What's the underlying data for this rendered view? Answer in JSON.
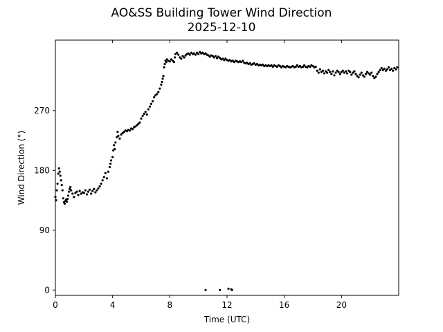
{
  "chart_data": {
    "type": "scatter",
    "title": "AO&SS Building Tower Wind Direction",
    "subtitle": "2025-12-10",
    "xlabel": "Time (UTC)",
    "ylabel": "Wind Direction (°)",
    "xlim": [
      0,
      24
    ],
    "ylim": [
      -8,
      376
    ],
    "xticks": [
      0,
      4,
      8,
      12,
      16,
      20
    ],
    "yticks": [
      0,
      90,
      180,
      270
    ],
    "grid": false,
    "legend": "none",
    "marker_color": "#000000",
    "series": [
      {
        "points": [
          [
            0.0,
            140
          ],
          [
            0.05,
            135
          ],
          [
            0.1,
            150
          ],
          [
            0.15,
            160
          ],
          [
            0.2,
            175
          ],
          [
            0.25,
            183
          ],
          [
            0.3,
            178
          ],
          [
            0.35,
            172
          ],
          [
            0.4,
            165
          ],
          [
            0.45,
            158
          ],
          [
            0.5,
            150
          ],
          [
            0.55,
            138
          ],
          [
            0.6,
            132
          ],
          [
            0.65,
            130
          ],
          [
            0.7,
            134
          ],
          [
            0.75,
            136
          ],
          [
            0.8,
            133
          ],
          [
            0.85,
            137
          ],
          [
            0.9,
            142
          ],
          [
            0.95,
            148
          ],
          [
            1.0,
            152
          ],
          [
            1.05,
            155
          ],
          [
            1.1,
            150
          ],
          [
            1.2,
            145
          ],
          [
            1.3,
            140
          ],
          [
            1.4,
            146
          ],
          [
            1.5,
            148
          ],
          [
            1.6,
            143
          ],
          [
            1.7,
            149
          ],
          [
            1.8,
            145
          ],
          [
            1.9,
            147
          ],
          [
            2.0,
            146
          ],
          [
            2.1,
            150
          ],
          [
            2.2,
            144
          ],
          [
            2.3,
            148
          ],
          [
            2.4,
            151
          ],
          [
            2.5,
            145
          ],
          [
            2.6,
            149
          ],
          [
            2.7,
            152
          ],
          [
            2.8,
            147
          ],
          [
            2.9,
            150
          ],
          [
            3.0,
            153
          ],
          [
            3.1,
            156
          ],
          [
            3.2,
            160
          ],
          [
            3.3,
            165
          ],
          [
            3.4,
            170
          ],
          [
            3.5,
            176
          ],
          [
            3.6,
            168
          ],
          [
            3.7,
            178
          ],
          [
            3.8,
            185
          ],
          [
            3.85,
            190
          ],
          [
            3.9,
            195
          ],
          [
            4.0,
            200
          ],
          [
            4.05,
            210
          ],
          [
            4.1,
            218
          ],
          [
            4.15,
            212
          ],
          [
            4.2,
            222
          ],
          [
            4.3,
            230
          ],
          [
            4.35,
            238
          ],
          [
            4.4,
            232
          ],
          [
            4.5,
            228
          ],
          [
            4.6,
            234
          ],
          [
            4.7,
            236
          ],
          [
            4.8,
            238
          ],
          [
            4.9,
            240
          ],
          [
            5.0,
            239
          ],
          [
            5.1,
            241
          ],
          [
            5.2,
            240
          ],
          [
            5.3,
            243
          ],
          [
            5.4,
            242
          ],
          [
            5.5,
            245
          ],
          [
            5.6,
            246
          ],
          [
            5.7,
            248
          ],
          [
            5.8,
            250
          ],
          [
            5.9,
            252
          ],
          [
            6.0,
            258
          ],
          [
            6.1,
            262
          ],
          [
            6.2,
            265
          ],
          [
            6.3,
            268
          ],
          [
            6.4,
            264
          ],
          [
            6.5,
            272
          ],
          [
            6.6,
            276
          ],
          [
            6.7,
            280
          ],
          [
            6.8,
            284
          ],
          [
            6.9,
            290
          ],
          [
            7.0,
            293
          ],
          [
            7.1,
            295
          ],
          [
            7.2,
            298
          ],
          [
            7.3,
            303
          ],
          [
            7.4,
            309
          ],
          [
            7.45,
            313
          ],
          [
            7.5,
            318
          ],
          [
            7.55,
            322
          ],
          [
            7.6,
            335
          ],
          [
            7.65,
            340
          ],
          [
            7.7,
            345
          ],
          [
            7.75,
            343
          ],
          [
            7.8,
            347
          ],
          [
            7.9,
            345
          ],
          [
            8.0,
            344
          ],
          [
            8.1,
            347
          ],
          [
            8.2,
            345
          ],
          [
            8.3,
            343
          ],
          [
            8.35,
            350
          ],
          [
            8.4,
            355
          ],
          [
            8.5,
            357
          ],
          [
            8.6,
            354
          ],
          [
            8.7,
            350
          ],
          [
            8.8,
            348
          ],
          [
            8.9,
            352
          ],
          [
            9.0,
            350
          ],
          [
            9.1,
            353
          ],
          [
            9.2,
            355
          ],
          [
            9.3,
            356
          ],
          [
            9.4,
            354
          ],
          [
            9.5,
            357
          ],
          [
            9.6,
            355
          ],
          [
            9.7,
            356
          ],
          [
            9.8,
            354
          ],
          [
            9.9,
            357
          ],
          [
            10.0,
            355
          ],
          [
            10.1,
            358
          ],
          [
            10.2,
            356
          ],
          [
            10.3,
            357
          ],
          [
            10.4,
            355
          ],
          [
            10.5,
            356
          ],
          [
            10.6,
            354
          ],
          [
            10.7,
            353
          ],
          [
            10.8,
            351
          ],
          [
            10.9,
            353
          ],
          [
            11.0,
            352
          ],
          [
            11.1,
            350
          ],
          [
            11.2,
            352
          ],
          [
            11.3,
            349
          ],
          [
            11.4,
            351
          ],
          [
            11.5,
            349
          ],
          [
            11.6,
            347
          ],
          [
            11.7,
            348
          ],
          [
            11.8,
            346
          ],
          [
            11.9,
            348
          ],
          [
            12.0,
            346
          ],
          [
            12.1,
            345
          ],
          [
            12.2,
            346
          ],
          [
            12.3,
            344
          ],
          [
            12.4,
            345
          ],
          [
            12.5,
            343
          ],
          [
            12.6,
            345
          ],
          [
            12.7,
            344
          ],
          [
            12.8,
            343
          ],
          [
            12.9,
            344
          ],
          [
            13.0,
            343
          ],
          [
            13.1,
            345
          ],
          [
            13.2,
            342
          ],
          [
            13.3,
            341
          ],
          [
            13.4,
            342
          ],
          [
            13.5,
            340
          ],
          [
            13.6,
            341
          ],
          [
            13.7,
            339
          ],
          [
            13.8,
            340
          ],
          [
            13.9,
            341
          ],
          [
            14.0,
            339
          ],
          [
            14.1,
            340
          ],
          [
            14.2,
            338
          ],
          [
            14.3,
            339
          ],
          [
            14.4,
            338
          ],
          [
            14.5,
            339
          ],
          [
            14.6,
            337
          ],
          [
            14.7,
            338
          ],
          [
            14.8,
            337
          ],
          [
            14.9,
            338
          ],
          [
            15.0,
            337
          ],
          [
            15.1,
            338
          ],
          [
            15.2,
            336
          ],
          [
            15.3,
            338
          ],
          [
            15.4,
            337
          ],
          [
            15.5,
            336
          ],
          [
            15.6,
            338
          ],
          [
            15.7,
            337
          ],
          [
            15.8,
            335
          ],
          [
            15.9,
            337
          ],
          [
            16.0,
            336
          ],
          [
            16.1,
            335
          ],
          [
            16.2,
            337
          ],
          [
            16.3,
            336
          ],
          [
            16.4,
            335
          ],
          [
            16.5,
            336
          ],
          [
            16.6,
            337
          ],
          [
            16.7,
            335
          ],
          [
            16.8,
            336
          ],
          [
            16.9,
            338
          ],
          [
            17.0,
            336
          ],
          [
            17.1,
            337
          ],
          [
            17.2,
            335
          ],
          [
            17.3,
            336
          ],
          [
            17.4,
            338
          ],
          [
            17.5,
            336
          ],
          [
            17.6,
            335
          ],
          [
            17.7,
            337
          ],
          [
            17.8,
            336
          ],
          [
            17.9,
            338
          ],
          [
            18.0,
            337
          ],
          [
            18.1,
            335
          ],
          [
            18.2,
            336
          ],
          [
            18.3,
            330
          ],
          [
            18.4,
            327
          ],
          [
            18.5,
            332
          ],
          [
            18.6,
            328
          ],
          [
            18.7,
            330
          ],
          [
            18.8,
            326
          ],
          [
            18.9,
            329
          ],
          [
            19.0,
            327
          ],
          [
            19.1,
            331
          ],
          [
            19.2,
            328
          ],
          [
            19.3,
            325
          ],
          [
            19.4,
            329
          ],
          [
            19.5,
            323
          ],
          [
            19.6,
            327
          ],
          [
            19.7,
            330
          ],
          [
            19.8,
            328
          ],
          [
            19.9,
            325
          ],
          [
            20.0,
            328
          ],
          [
            20.1,
            330
          ],
          [
            20.2,
            327
          ],
          [
            20.3,
            329
          ],
          [
            20.4,
            326
          ],
          [
            20.5,
            330
          ],
          [
            20.6,
            328
          ],
          [
            20.7,
            324
          ],
          [
            20.8,
            327
          ],
          [
            20.9,
            329
          ],
          [
            21.0,
            325
          ],
          [
            21.1,
            322
          ],
          [
            21.2,
            320
          ],
          [
            21.3,
            324
          ],
          [
            21.4,
            327
          ],
          [
            21.5,
            323
          ],
          [
            21.6,
            321
          ],
          [
            21.7,
            325
          ],
          [
            21.8,
            328
          ],
          [
            21.9,
            326
          ],
          [
            22.0,
            324
          ],
          [
            22.1,
            327
          ],
          [
            22.2,
            322
          ],
          [
            22.3,
            319
          ],
          [
            22.4,
            321
          ],
          [
            22.5,
            325
          ],
          [
            22.6,
            328
          ],
          [
            22.7,
            331
          ],
          [
            22.8,
            334
          ],
          [
            22.9,
            331
          ],
          [
            23.0,
            333
          ],
          [
            23.1,
            330
          ],
          [
            23.2,
            332
          ],
          [
            23.3,
            335
          ],
          [
            23.4,
            331
          ],
          [
            23.5,
            333
          ],
          [
            23.6,
            330
          ],
          [
            23.7,
            334
          ],
          [
            23.8,
            332
          ],
          [
            23.9,
            335
          ],
          [
            10.5,
            0
          ],
          [
            11.5,
            0
          ],
          [
            12.1,
            2
          ],
          [
            12.3,
            1
          ],
          [
            12.35,
            0
          ]
        ]
      }
    ]
  }
}
